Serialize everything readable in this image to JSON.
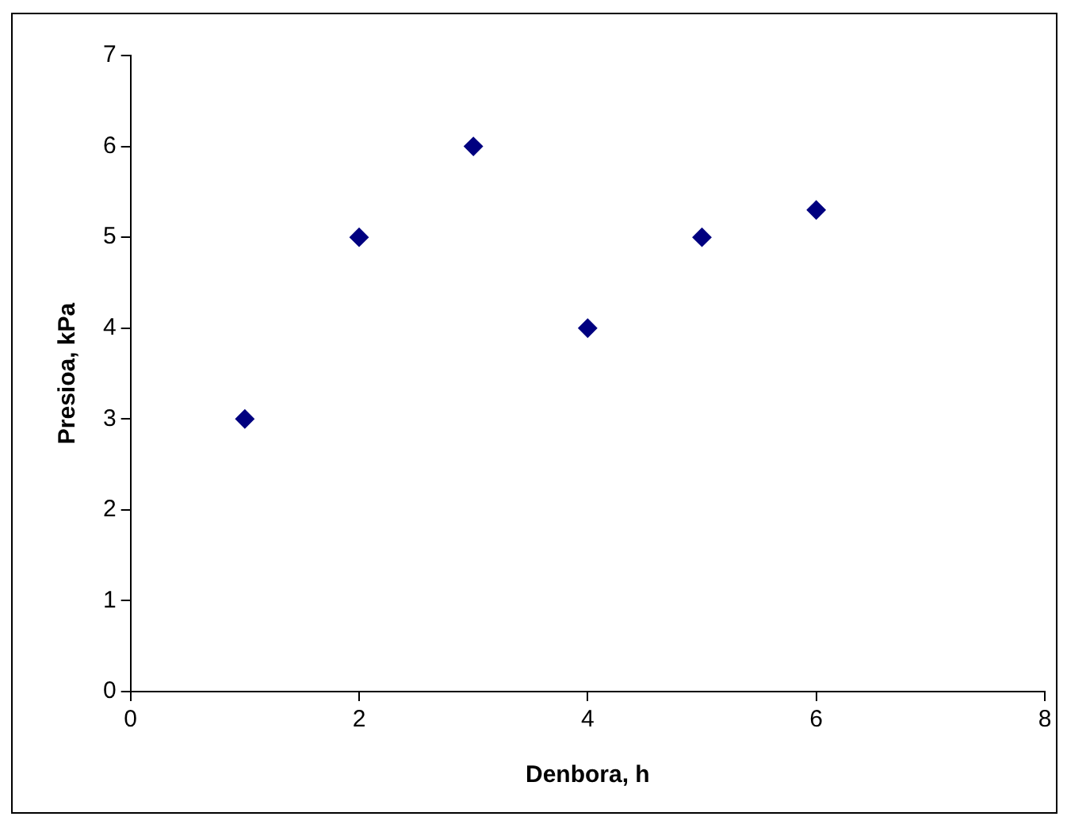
{
  "chart_data": {
    "type": "scatter",
    "xlabel": "Denbora, h",
    "ylabel": "Presioa, kPa",
    "x": [
      1,
      2,
      3,
      4,
      5,
      6
    ],
    "series": [
      {
        "color": "#000080",
        "values": [
          3,
          5,
          6,
          4,
          5,
          5.3
        ]
      }
    ],
    "xlim": [
      0,
      8
    ],
    "xticks": [
      0,
      2,
      4,
      6,
      8
    ],
    "ylim": [
      0,
      7
    ],
    "yticks": [
      0,
      1,
      2,
      3,
      4,
      5,
      6,
      7
    ],
    "grid": false,
    "legend": false,
    "marker": "diamond"
  }
}
